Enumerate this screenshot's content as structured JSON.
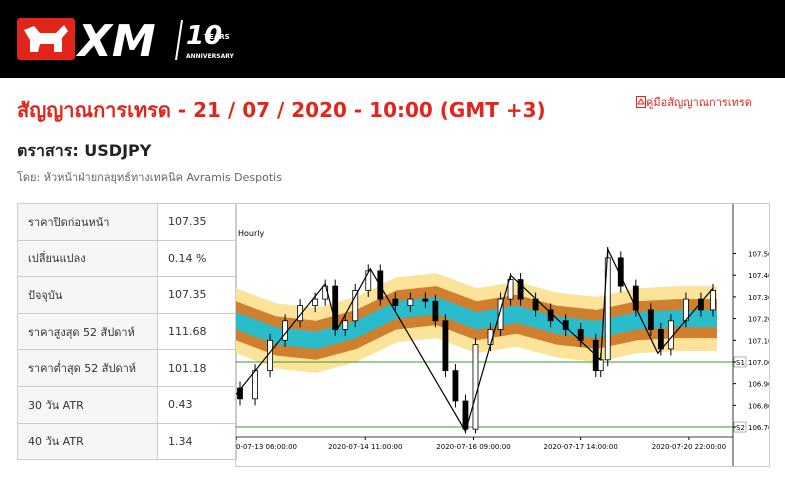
{
  "header": {
    "logo": "XM",
    "badge_number": "10",
    "badge_years": "YEARS",
    "badge_caption": "ANNIVERSARY"
  },
  "title": "สัญญาณการเทรด - 21 / 07 / 2020 - 10:00 (GMT +3)",
  "guide_link": "คู่มือสัญญาณการเทรด",
  "instrument": "ตราสาร: USDJPY",
  "author": "โดย: หัวหน้าฝ่ายกลยุทธ์ทางเทคนิค Avramis Despotis",
  "table": {
    "rows": [
      [
        "ราคาปิดก่อนหน้า",
        "107.35"
      ],
      [
        "เปลี่ยนแปลง",
        "0.14 %"
      ],
      [
        "ปัจจุบัน",
        "107.35"
      ],
      [
        "ราคาสูงสุด 52 สัปดาห์",
        "111.68"
      ],
      [
        "ราคาต่ำสุด 52 สัปดาห์",
        "101.18"
      ],
      [
        "30 วัน ATR",
        "0.43"
      ],
      [
        "40 วัน ATR",
        "1.34"
      ]
    ]
  },
  "chart_data": {
    "type": "candlestick",
    "timeframe": "Hourly",
    "x": [
      1,
      4.75,
      8.5,
      12.25,
      16,
      19.75,
      22.25,
      24.75,
      27.25,
      29.75,
      33,
      36,
      39.75,
      43.5,
      47.25,
      49.75,
      52.25,
      54.75,
      57.25,
      59.75,
      63.5,
      66,
      68.5,
      71,
      74.75,
      78.5,
      82.25,
      86,
      89.75,
      91,
      92.75,
      96,
      99.75,
      103.5,
      106,
      108.5,
      112.25,
      116,
      119
    ],
    "open": [
      106.88,
      106.83,
      106.96,
      107.1,
      107.19,
      107.26,
      107.29,
      107.35,
      107.15,
      107.19,
      107.33,
      107.42,
      107.29,
      107.26,
      107.29,
      107.28,
      107.19,
      106.96,
      106.82,
      106.69,
      107.08,
      107.15,
      107.29,
      107.38,
      107.29,
      107.24,
      107.19,
      107.15,
      107.1,
      106.96,
      107.01,
      107.48,
      107.35,
      107.24,
      107.15,
      107.06,
      107.19,
      107.29,
      107.24
    ],
    "high": [
      106.91,
      106.99,
      107.13,
      107.22,
      107.29,
      107.32,
      107.38,
      107.38,
      107.22,
      107.36,
      107.45,
      107.45,
      107.32,
      107.32,
      107.32,
      107.31,
      107.22,
      106.99,
      106.85,
      107.11,
      107.18,
      107.32,
      107.41,
      107.41,
      107.32,
      107.27,
      107.22,
      107.18,
      107.13,
      107.04,
      107.53,
      107.51,
      107.38,
      107.27,
      107.18,
      107.22,
      107.32,
      107.32,
      107.36
    ],
    "low": [
      106.8,
      106.8,
      106.93,
      107.07,
      107.16,
      107.23,
      107.26,
      107.12,
      107.12,
      107.16,
      107.3,
      107.26,
      107.23,
      107.23,
      107.25,
      107.16,
      106.93,
      106.79,
      106.67,
      106.67,
      107.05,
      107.12,
      107.26,
      107.26,
      107.21,
      107.16,
      107.12,
      107.07,
      106.93,
      106.93,
      106.98,
      107.32,
      107.21,
      107.12,
      107.03,
      107.03,
      107.16,
      107.21,
      107.21
    ],
    "close": [
      106.83,
      106.96,
      107.1,
      107.19,
      107.26,
      107.29,
      107.35,
      107.15,
      107.19,
      107.33,
      107.42,
      107.29,
      107.26,
      107.29,
      107.28,
      107.19,
      106.96,
      106.82,
      106.69,
      107.08,
      107.15,
      107.29,
      107.38,
      107.29,
      107.24,
      107.19,
      107.15,
      107.1,
      106.96,
      107.01,
      107.48,
      107.35,
      107.24,
      107.15,
      107.06,
      107.19,
      107.29,
      107.24,
      107.33
    ],
    "up_color": "#ffffff",
    "down_color": "#000000",
    "bands_x": [
      0,
      10,
      20,
      30,
      40,
      50,
      60,
      70,
      80,
      90,
      100,
      110,
      120
    ],
    "bands": [
      {
        "color": "#fbe39a",
        "upper": [
          107.34,
          107.27,
          107.25,
          107.3,
          107.39,
          107.41,
          107.34,
          107.37,
          107.32,
          107.3,
          107.34,
          107.35,
          107.35
        ],
        "lower": [
          107.04,
          106.97,
          106.95,
          107.0,
          107.09,
          107.11,
          107.04,
          107.07,
          107.02,
          107.0,
          107.04,
          107.05,
          107.05
        ]
      },
      {
        "color": "#cf7f2d",
        "upper": [
          107.28,
          107.21,
          107.19,
          107.24,
          107.33,
          107.35,
          107.28,
          107.31,
          107.26,
          107.24,
          107.28,
          107.29,
          107.29
        ],
        "lower": [
          107.1,
          107.03,
          107.01,
          107.06,
          107.15,
          107.17,
          107.1,
          107.13,
          107.08,
          107.06,
          107.1,
          107.11,
          107.11
        ]
      },
      {
        "color": "#2bbccb",
        "upper": [
          107.23,
          107.16,
          107.14,
          107.19,
          107.28,
          107.3,
          107.23,
          107.26,
          107.21,
          107.19,
          107.23,
          107.24,
          107.24
        ],
        "lower": [
          107.15,
          107.08,
          107.06,
          107.11,
          107.2,
          107.22,
          107.15,
          107.18,
          107.13,
          107.11,
          107.15,
          107.16,
          107.16
        ]
      }
    ],
    "zigzag": {
      "color": "#000000",
      "x": [
        0,
        22.25,
        25.25,
        33.5,
        57.25,
        68.5,
        91,
        92.75,
        105.25,
        119
      ],
      "y": [
        106.85,
        107.36,
        107.15,
        107.43,
        106.68,
        107.4,
        107.01,
        107.52,
        107.04,
        107.34
      ]
    },
    "levels": [
      {
        "label": "S1",
        "value": 107.0,
        "color": "#3a9a3a"
      },
      {
        "label": "S2",
        "value": 106.7,
        "color": "#3a9a3a"
      }
    ],
    "xlim": [
      0,
      124
    ],
    "xticks": [
      {
        "value": 0,
        "label": "0-07-13 06:00:00"
      },
      {
        "value": 32.25,
        "label": "2020-07-14 11:00:00"
      },
      {
        "value": 59.25,
        "label": "2020-07-16 09:00:00"
      },
      {
        "value": 86,
        "label": "2020-07-17 14:00:00"
      },
      {
        "value": 113,
        "label": "2020-07-20 22:00:00"
      }
    ],
    "ylim": [
      106.654,
      107.687
    ],
    "yticks": [
      {
        "value": 107.5,
        "label": "107.50"
      },
      {
        "value": 107.4,
        "label": "107.40"
      },
      {
        "value": 107.3,
        "label": "107.30"
      },
      {
        "value": 107.2,
        "label": "107.20"
      },
      {
        "value": 107.1,
        "label": "107.10"
      },
      {
        "value": 107.0,
        "label": "107.00"
      },
      {
        "value": 106.9,
        "label": "106.90"
      },
      {
        "value": 106.8,
        "label": "106.80"
      },
      {
        "value": 106.7,
        "label": "106.70"
      }
    ]
  }
}
